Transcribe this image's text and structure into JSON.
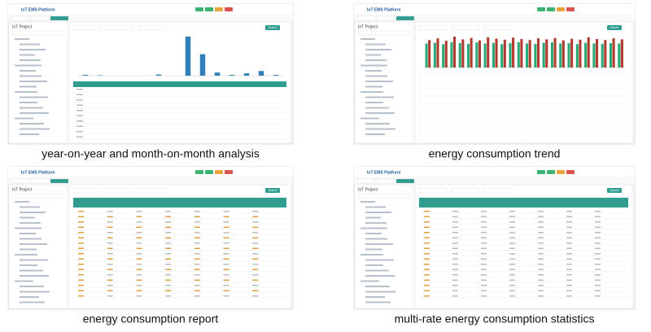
{
  "panels": [
    {
      "caption": "year-on-year and month-on-month analysis",
      "app_title": "IoT EMS Platform",
      "sidebar_title": "IoT Project",
      "button": "Search",
      "chart": {
        "type": "bar",
        "color": "#2e7fb8",
        "values": [
          2,
          1,
          0,
          0,
          0,
          3,
          0,
          100,
          55,
          8,
          2,
          6,
          12,
          2
        ]
      }
    },
    {
      "caption": "energy consumption trend",
      "app_title": "IoT EMS Platform",
      "sidebar_title": "IoT Project",
      "button": "Search",
      "chart": {
        "type": "grouped-bar",
        "series": [
          {
            "color": "#2aa876",
            "values": [
              70,
              72,
              68,
              74,
              71,
              69,
              73,
              70,
              72,
              68,
              71,
              74,
              70,
              69,
              72,
              73,
              70,
              71,
              68,
              72,
              70,
              69,
              71,
              70
            ]
          },
          {
            "color": "#b03a2e",
            "values": [
              80,
              85,
              78,
              90,
              82,
              86,
              79,
              88,
              84,
              81,
              87,
              83,
              80,
              85,
              82,
              86,
              79,
              84,
              81,
              88,
              83,
              80,
              85,
              82
            ]
          }
        ]
      }
    },
    {
      "caption": "energy consumption report",
      "app_title": "IoT EMS Platform",
      "sidebar_title": "IoT Project",
      "button": "Search"
    },
    {
      "caption": "multi-rate energy consumption statistics",
      "app_title": "IoT EMS Platform",
      "sidebar_title": "IoT Project",
      "button": "Search"
    }
  ]
}
